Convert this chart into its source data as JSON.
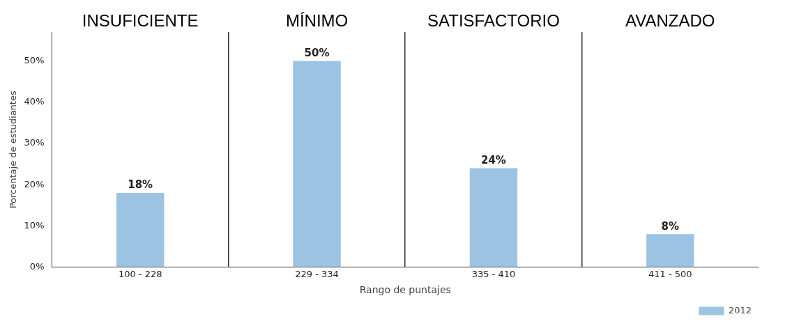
{
  "chart_data": {
    "type": "bar",
    "xlabel": "Rango de puntajes",
    "ylabel": "Porcentaje de estudiantes",
    "categories": [
      "100 - 228",
      "229 - 334",
      "335 - 410",
      "411 - 500"
    ],
    "series": [
      {
        "name": "2012",
        "color": "#9dc3e2",
        "values": [
          18,
          50,
          24,
          8
        ],
        "value_labels": [
          "18%",
          "50%",
          "24%",
          "8%"
        ]
      }
    ],
    "ylim": [
      0,
      57
    ],
    "yticks": [
      {
        "value": 0,
        "label": "0%"
      },
      {
        "value": 10,
        "label": "10%"
      },
      {
        "value": 20,
        "label": "20%"
      },
      {
        "value": 30,
        "label": "30%"
      },
      {
        "value": 40,
        "label": "40%"
      },
      {
        "value": 50,
        "label": "50%"
      }
    ],
    "annotations": [
      "INSUFICIENTE",
      "MÍNIMO",
      "SATISFACTORIO",
      "AVANZADO"
    ],
    "grid": "x",
    "legend": "bottom right"
  }
}
